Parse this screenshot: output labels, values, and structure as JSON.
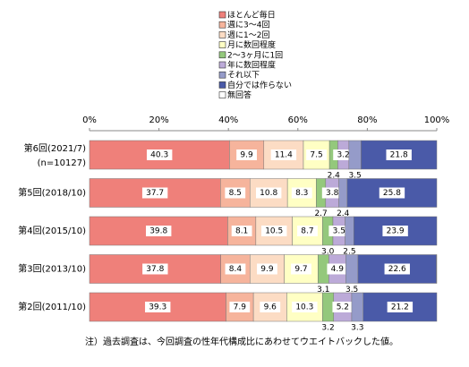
{
  "chart_data": {
    "type": "stacked-bar-horizontal",
    "categories": [
      "第6回(2021/7)",
      "第5回(2018/10)",
      "第4回(2015/10)",
      "第3回(2013/10)",
      "第2回(2011/10)"
    ],
    "category_sublabel": "(n=10127)",
    "xlim": [
      0,
      100
    ],
    "xticks": [
      {
        "value": 0,
        "label": "0%"
      },
      {
        "value": 20,
        "label": "20%"
      },
      {
        "value": 40,
        "label": "40%"
      },
      {
        "value": 60,
        "label": "60%"
      },
      {
        "value": 80,
        "label": "80%"
      },
      {
        "value": 100,
        "label": "100%"
      }
    ],
    "series": [
      {
        "name": "ほとんど毎日",
        "color": "#ef807a",
        "values": [
          40.3,
          37.7,
          39.8,
          37.8,
          39.3
        ],
        "value_labels": [
          "40.3",
          "37.7",
          "39.8",
          "37.8",
          "39.3"
        ]
      },
      {
        "name": "週に3～4回",
        "color": "#f6b49c",
        "values": [
          9.9,
          8.5,
          8.1,
          8.4,
          7.9
        ],
        "value_labels": [
          "9.9",
          "8.5",
          "8.1",
          "8.4",
          "7.9"
        ]
      },
      {
        "name": "週に1～2回",
        "color": "#fcdcc4",
        "values": [
          11.4,
          10.8,
          10.5,
          9.9,
          9.6
        ],
        "value_labels": [
          "11.4",
          "10.8",
          "10.5",
          "9.9",
          "9.6"
        ]
      },
      {
        "name": "月に数回程度",
        "color": "#ffffc4",
        "values": [
          7.5,
          8.3,
          8.7,
          9.7,
          10.3
        ],
        "value_labels": [
          "7.5",
          "8.3",
          "8.7",
          "9.7",
          "10.3"
        ]
      },
      {
        "name": "2～3ヶ月に1回",
        "color": "#94c87c",
        "values": [
          2.4,
          2.7,
          3.0,
          3.1,
          3.2
        ],
        "value_labels": [
          "2.4",
          "2.7",
          "3.0",
          "3.1",
          "3.2"
        ]
      },
      {
        "name": "年に数回程度",
        "color": "#bcaad8",
        "values": [
          3.2,
          3.8,
          3.5,
          4.9,
          5.2
        ],
        "value_labels": [
          "3.2",
          "3.8",
          "3.5",
          "4.9",
          "5.2"
        ]
      },
      {
        "name": "それ以下",
        "color": "#959bc9",
        "values": [
          3.5,
          2.4,
          2.5,
          3.5,
          3.3
        ],
        "value_labels": [
          "3.5",
          "2.4",
          "2.5",
          "3.5",
          "3.3"
        ]
      },
      {
        "name": "自分では作らない",
        "color": "#4a5aa8",
        "values": [
          21.8,
          25.8,
          23.9,
          22.6,
          21.2
        ],
        "value_labels": [
          "21.8",
          "25.8",
          "23.9",
          "22.6",
          "21.2"
        ]
      },
      {
        "name": "無回答",
        "color": "#ffffff",
        "values": [
          0,
          0,
          0,
          0.1,
          0
        ]
      }
    ],
    "outside_label_series": [
      4,
      6
    ],
    "footnote": "注）過去調査は、今回調査の性年代構成比にあわせてウエイトバックした値。"
  }
}
